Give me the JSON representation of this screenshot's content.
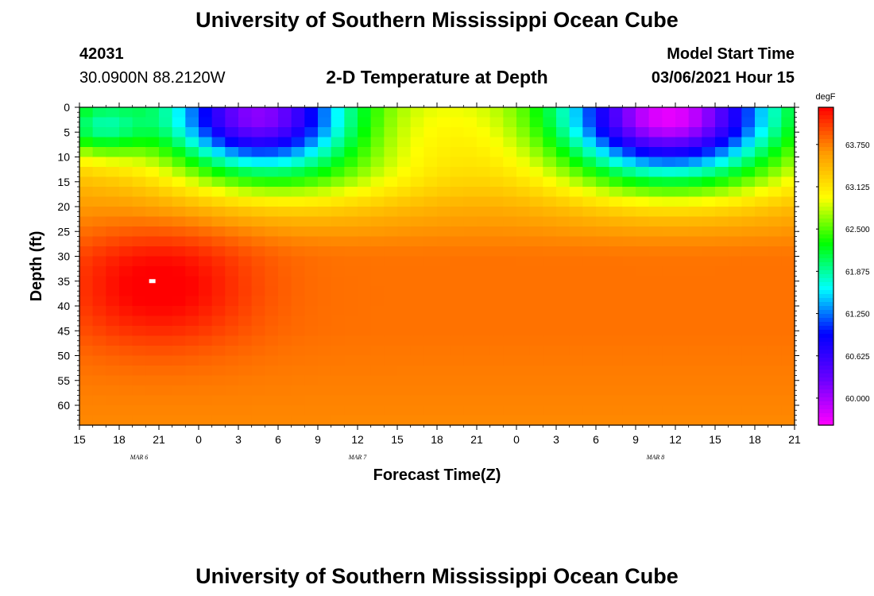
{
  "header": {
    "title_top": "University of Southern Mississippi Ocean Cube",
    "station_id": "42031",
    "coordinates": "30.0900N 88.2120W",
    "plot_title": "2-D Temperature at Depth",
    "model_start_label": "Model Start Time",
    "model_start_value": "03/06/2021 Hour 15"
  },
  "footer": {
    "title_bottom": "University of Southern Mississippi Ocean Cube"
  },
  "colors": {
    "colormap": [
      "#ff00ff",
      "#6a00ff",
      "#0000ff",
      "#00ffff",
      "#00ff00",
      "#ffff00",
      "#ff9900",
      "#ff0000"
    ]
  },
  "chart_data": {
    "type": "heatmap",
    "title": "2-D Temperature at Depth",
    "xlabel": "Forecast Time(Z)",
    "ylabel": "Depth (ft)",
    "x_tick_labels": [
      "15",
      "18",
      "21",
      "0",
      "3",
      "6",
      "9",
      "12",
      "15",
      "18",
      "21",
      "0",
      "3",
      "6",
      "9",
      "12",
      "15",
      "18",
      "21"
    ],
    "x_hours": [
      0,
      3,
      6,
      9,
      12,
      15,
      18,
      21,
      24,
      27,
      30,
      33,
      36,
      39,
      42,
      45,
      48,
      51,
      54
    ],
    "date_labels": [
      {
        "text": "MAR 6",
        "hour": 4.5
      },
      {
        "text": "MAR 7",
        "hour": 21
      },
      {
        "text": "MAR 8",
        "hour": 43.5
      }
    ],
    "y_ticks": [
      0,
      5,
      10,
      15,
      20,
      25,
      30,
      35,
      40,
      45,
      50,
      55,
      60
    ],
    "ylim": [
      0,
      64
    ],
    "xlim_hours": [
      0,
      54
    ],
    "colorbar": {
      "unit": "degF",
      "ticks": [
        63.75,
        63.125,
        62.5,
        61.875,
        61.25,
        60.625,
        60.0
      ],
      "range": [
        59.6,
        64.3
      ]
    },
    "marker": {
      "hour": 5.5,
      "depth": 35
    },
    "temperature_field": {
      "depth_unit": "ft",
      "profile": [
        {
          "depth": 0,
          "temp": 63.0
        },
        {
          "depth": 20,
          "temp": 63.6
        },
        {
          "depth": 30,
          "temp": 63.8
        },
        {
          "depth": 45,
          "temp": 63.8
        },
        {
          "depth": 64,
          "temp": 63.7
        }
      ],
      "features": [
        {
          "kind": "cool_surface_lens",
          "hour": 1.5,
          "depth": 4,
          "hour_width": 3.5,
          "depth_width": 6,
          "delta": -1.1
        },
        {
          "kind": "warm_core",
          "hour": 6,
          "depth": 36,
          "hour_width": 7,
          "depth_width": 12,
          "delta": 0.55
        },
        {
          "kind": "cold_surface_pool",
          "hour": 13.5,
          "depth": 2,
          "hour_width": 7,
          "depth_width": 10,
          "delta": -2.9
        },
        {
          "kind": "cold_surface_pool",
          "hour": 44.5,
          "depth": 2,
          "hour_width": 8,
          "depth_width": 10,
          "delta": -3.3
        },
        {
          "kind": "cool_wedge",
          "hour": 17,
          "depth": 14,
          "hour_width": 10,
          "depth_width": 8,
          "delta": -0.6
        },
        {
          "kind": "cool_wedge",
          "hour": 45,
          "depth": 14,
          "hour_width": 10,
          "depth_width": 8,
          "delta": -0.7
        }
      ]
    }
  }
}
